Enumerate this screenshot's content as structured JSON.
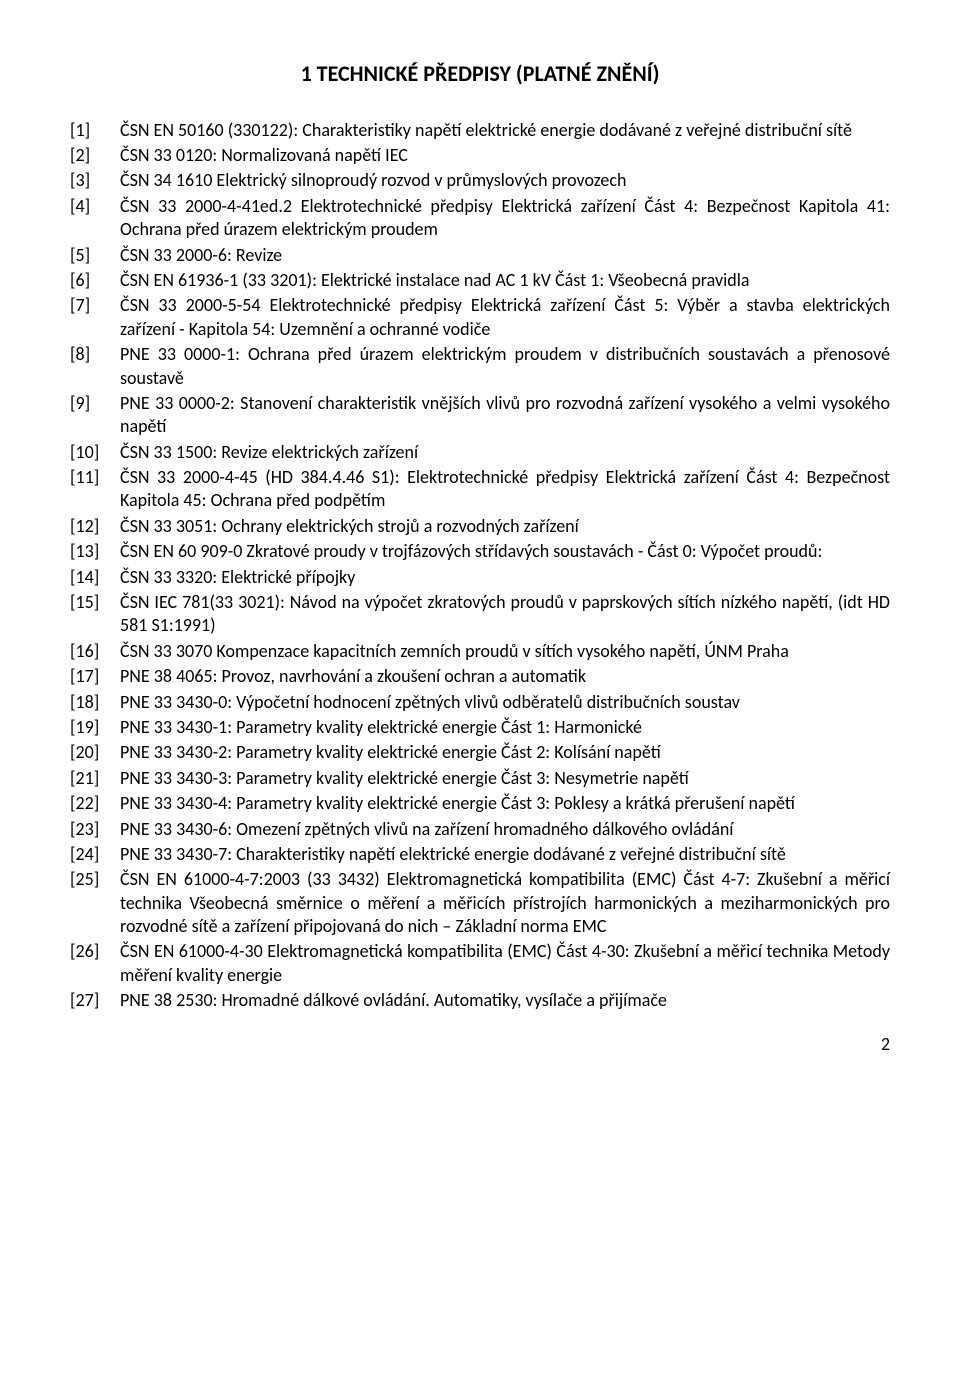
{
  "title": "1 TECHNICKÉ PŘEDPISY (PLATNÉ ZNĚNÍ)",
  "items": [
    {
      "ref": "[1]",
      "text": "ČSN EN 50160 (330122): Charakteristiky napětí elektrické energie dodávané z veřejné distribuční sítě"
    },
    {
      "ref": "[2]",
      "text": "ČSN 33 0120: Normalizovaná napětí IEC"
    },
    {
      "ref": "[3]",
      "text": "ČSN 34 1610 Elektrický silnoproudý rozvod v průmyslových provozech"
    },
    {
      "ref": "[4]",
      "text": "ČSN 33 2000-4-41ed.2 Elektrotechnické předpisy Elektrická zařízení Část 4: Bezpečnost Kapitola 41: Ochrana před úrazem elektrickým proudem"
    },
    {
      "ref": "[5]",
      "text": "ČSN 33 2000-6: Revize"
    },
    {
      "ref": "[6]",
      "text": "ČSN EN 61936-1 (33 3201): Elektrické instalace nad AC 1 kV Část 1: Všeobecná pravidla"
    },
    {
      "ref": "[7]",
      "text": "ČSN 33 2000-5-54 Elektrotechnické předpisy Elektrická zařízení Část 5: Výběr a stavba elektrických zařízení - Kapitola 54: Uzemnění a ochranné vodiče"
    },
    {
      "ref": "[8]",
      "text": "PNE 33 0000-1: Ochrana před úrazem elektrickým proudem v distribučních soustavách a přenosové soustavě"
    },
    {
      "ref": "[9]",
      "text": "PNE 33 0000-2: Stanovení charakteristik vnějších vlivů pro rozvodná zařízení vysokého a velmi vysokého napětí"
    },
    {
      "ref": "[10]",
      "text": "ČSN 33 1500: Revize elektrických zařízení"
    },
    {
      "ref": "[11]",
      "text": "ČSN 33 2000-4-45 (HD 384.4.46 S1): Elektrotechnické předpisy Elektrická zařízení Část 4: Bezpečnost Kapitola 45: Ochrana před podpětím"
    },
    {
      "ref": "[12]",
      "text": "ČSN 33 3051: Ochrany elektrických strojů a rozvodných zařízení"
    },
    {
      "ref": "[13]",
      "text": "ČSN EN 60 909-0 Zkratové proudy v trojfázových střídavých soustavách - Část 0: Výpočet proudů:"
    },
    {
      "ref": "[14]",
      "text": "ČSN 33 3320: Elektrické přípojky"
    },
    {
      "ref": "[15]",
      "text": "ČSN IEC 781(33 3021): Návod na výpočet zkratových proudů v paprskových sítích nízkého napětí, (idt HD 581 S1:1991)"
    },
    {
      "ref": "[16]",
      "text": "ČSN 33 3070 Kompenzace kapacitních zemních proudů v sítích vysokého napětí, ÚNM Praha"
    },
    {
      "ref": "[17]",
      "text": "PNE 38 4065: Provoz, navrhování a zkoušení ochran a automatik"
    },
    {
      "ref": "[18]",
      "text": "PNE 33 3430-0: Výpočetní hodnocení zpětných vlivů odběratelů distribučních soustav"
    },
    {
      "ref": "[19]",
      "text": "PNE 33 3430-1: Parametry kvality elektrické energie Část 1: Harmonické"
    },
    {
      "ref": "[20]",
      "text": "PNE 33 3430-2: Parametry kvality elektrické energie Část 2: Kolísání napětí"
    },
    {
      "ref": "[21]",
      "text": "PNE 33 3430-3: Parametry kvality elektrické energie Část 3: Nesymetrie napětí"
    },
    {
      "ref": "[22]",
      "text": "PNE 33 3430-4: Parametry kvality elektrické energie Část 3: Poklesy a krátká přerušení napětí"
    },
    {
      "ref": "[23]",
      "text": "PNE 33 3430-6: Omezení zpětných vlivů na zařízení hromadného dálkového ovládání"
    },
    {
      "ref": "[24]",
      "text": "PNE 33 3430-7: Charakteristiky napětí elektrické energie dodávané z veřejné distribuční sítě"
    },
    {
      "ref": "[25]",
      "text": "ČSN EN 61000-4-7:2003 (33 3432) Elektromagnetická kompatibilita (EMC) Část 4-7: Zkušební a měřicí technika Všeobecná směrnice o měření a měřicích přístrojích harmonických a meziharmonických pro rozvodné sítě a zařízení připojovaná do nich – Základní norma EMC"
    },
    {
      "ref": "[26]",
      "text": "ČSN EN 61000-4-30 Elektromagnetická kompatibilita (EMC) Část 4-30: Zkušební a měřicí technika Metody měření kvality energie"
    },
    {
      "ref": "[27]",
      "text": "PNE 38 2530: Hromadné dálkové ovládání. Automatiky, vysílače a přijímače"
    }
  ],
  "page_number": "2"
}
